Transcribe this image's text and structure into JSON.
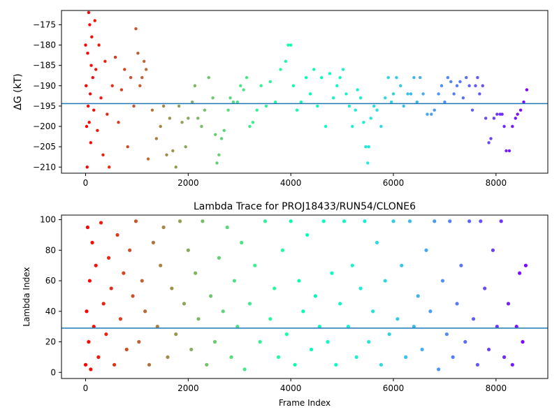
{
  "chart_data": [
    {
      "type": "scatter",
      "title": "",
      "xlabel": "",
      "ylabel": "ΔG (kT)",
      "xlim": [
        -470,
        9010
      ],
      "ylim": [
        -211.5,
        -171.5
      ],
      "xticks": [
        0,
        2000,
        4000,
        6000,
        8000
      ],
      "yticks": [
        -175,
        -180,
        -185,
        -190,
        -195,
        -200,
        -205,
        -210
      ],
      "hline": {
        "y": -194.4,
        "color": "#1f77b4"
      },
      "colormap": "rainbow, reversed along x (red at early frames, violet at late frames)",
      "series": [
        {
          "x": [
            0,
            10,
            20,
            30,
            40,
            50,
            60,
            70,
            80,
            90,
            100,
            110,
            120,
            140,
            160,
            180,
            200,
            230,
            260,
            300,
            340,
            380,
            420,
            460,
            520,
            580,
            640,
            700,
            760,
            820,
            880,
            940,
            980,
            1020,
            1060,
            1100,
            1140,
            1180,
            1220,
            1300,
            1380,
            1460,
            1520,
            1580,
            1640,
            1700,
            1760,
            1820,
            1880,
            1950,
            2000,
            2080,
            2130,
            2190,
            2260,
            2320,
            2400,
            2480,
            2530,
            2560,
            2600,
            2650,
            2700,
            2780,
            2820,
            2880,
            2960,
            3020,
            3080,
            3140,
            3200,
            3260,
            3340,
            3420,
            3520,
            3600,
            3700,
            3800,
            3900,
            3950,
            4000,
            4050,
            4120,
            4200,
            4300,
            4380,
            4450,
            4520,
            4600,
            4680,
            4760,
            4830,
            4900,
            4960,
            5020,
            5080,
            5140,
            5200,
            5260,
            5300,
            5360,
            5420,
            5460,
            5500,
            5520,
            5560,
            5620,
            5680,
            5760,
            5840,
            5900,
            5960,
            6000,
            6060,
            6140,
            6200,
            6280,
            6340,
            6400,
            6460,
            6520,
            6580,
            6660,
            6740,
            6800,
            6880,
            6940,
            7000,
            7060,
            7120,
            7180,
            7240,
            7300,
            7360,
            7420,
            7480,
            7540,
            7600,
            7640,
            7680,
            7740,
            7800,
            7860,
            7900,
            7960,
            8020,
            8080,
            8120,
            8160,
            8200,
            8260,
            8320,
            8380,
            8420,
            8480,
            8540,
            8600
          ],
          "y": [
            -180,
            -190,
            -200,
            -210,
            -182,
            -195,
            -172,
            -199,
            -175,
            -192,
            -204,
            -185,
            -178,
            -188,
            -196,
            -174,
            -186,
            -201,
            -180,
            -193,
            -207,
            -184,
            -197,
            -210,
            -190,
            -183,
            -199,
            -191,
            -186,
            -205,
            -188,
            -195,
            -176,
            -182,
            -190,
            -188,
            -184,
            -186,
            -208,
            -196,
            -203,
            -200,
            -195,
            -207,
            -198,
            -206,
            -210,
            -195,
            -199,
            -205,
            -198,
            -194,
            -190,
            -198,
            -200,
            -196,
            -188,
            -193,
            -202,
            -209,
            -207,
            -203,
            -201,
            -196,
            -193,
            -194,
            -194,
            -190,
            -191,
            -188,
            -200,
            -199,
            -196,
            -190,
            -195,
            -189,
            -194,
            -186,
            -184,
            -180,
            -180,
            -190,
            -196,
            -194,
            -188,
            -192,
            -186,
            -195,
            -188,
            -200,
            -187,
            -193,
            -190,
            -188,
            -186,
            -192,
            -195,
            -200,
            -196,
            -191,
            -193,
            -199,
            -205,
            -209,
            -205,
            -198,
            -195,
            -196,
            -200,
            -193,
            -188,
            -194,
            -192,
            -188,
            -190,
            -195,
            -192,
            -192,
            -188,
            -194,
            -188,
            -192,
            -197,
            -197,
            -196,
            -192,
            -190,
            -194,
            -188,
            -189,
            -192,
            -190,
            -189,
            -193,
            -188,
            -190,
            -196,
            -190,
            -188,
            -192,
            -190,
            -198,
            -204,
            -203,
            -198,
            -197,
            -197,
            -197,
            -200,
            -206,
            -206,
            -200,
            -198,
            -197,
            -196,
            -194,
            -191
          ]
        }
      ]
    },
    {
      "type": "scatter",
      "title": "Lambda Trace for PROJ18433/RUN54/CLONE6",
      "xlabel": "Frame Index",
      "ylabel": "Lambda Index",
      "xlim": [
        -470,
        9010
      ],
      "ylim": [
        -4,
        103
      ],
      "xticks": [
        0,
        2000,
        4000,
        6000,
        8000
      ],
      "yticks": [
        0,
        20,
        40,
        60,
        80,
        100
      ],
      "hline": {
        "y": 29,
        "color": "#1f77b4"
      },
      "colormap": "rainbow, reversed along x (red at early frames, violet at late frames)",
      "series": [
        {
          "x": [
            0,
            20,
            40,
            60,
            80,
            100,
            130,
            160,
            200,
            250,
            300,
            350,
            400,
            450,
            500,
            560,
            620,
            680,
            740,
            800,
            860,
            920,
            980,
            1040,
            1100,
            1160,
            1240,
            1320,
            1400,
            1460,
            1520,
            1600,
            1680,
            1760,
            1840,
            1920,
            2000,
            2060,
            2140,
            2200,
            2280,
            2360,
            2440,
            2520,
            2600,
            2680,
            2760,
            2840,
            2900,
            2960,
            3040,
            3100,
            3200,
            3300,
            3400,
            3500,
            3600,
            3680,
            3760,
            3840,
            3920,
            4000,
            4080,
            4160,
            4240,
            4320,
            4400,
            4480,
            4560,
            4640,
            4720,
            4800,
            4880,
            4960,
            5040,
            5120,
            5200,
            5280,
            5360,
            5440,
            5520,
            5600,
            5680,
            5760,
            5840,
            5920,
            6000,
            6080,
            6160,
            6240,
            6320,
            6400,
            6480,
            6560,
            6640,
            6720,
            6800,
            6880,
            6960,
            7040,
            7100,
            7160,
            7240,
            7320,
            7400,
            7480,
            7560,
            7640,
            7700,
            7780,
            7860,
            7940,
            8020,
            8100,
            8160,
            8240,
            8320,
            8400,
            8460,
            8520,
            8580
          ],
          "y": [
            5,
            40,
            95,
            20,
            60,
            2,
            85,
            30,
            70,
            10,
            98,
            45,
            25,
            75,
            55,
            5,
            90,
            35,
            65,
            15,
            80,
            50,
            99,
            20,
            60,
            40,
            5,
            85,
            30,
            70,
            95,
            10,
            55,
            25,
            99,
            45,
            80,
            15,
            65,
            35,
            99,
            5,
            50,
            20,
            75,
            40,
            95,
            10,
            60,
            30,
            85,
            2,
            45,
            70,
            20,
            99,
            35,
            55,
            10,
            80,
            25,
            99,
            5,
            60,
            40,
            90,
            15,
            50,
            30,
            99,
            20,
            65,
            5,
            45,
            99,
            30,
            70,
            10,
            55,
            99,
            20,
            40,
            85,
            5,
            60,
            25,
            99,
            35,
            70,
            10,
            99,
            30,
            50,
            15,
            80,
            40,
            99,
            2,
            60,
            25,
            99,
            10,
            45,
            70,
            20,
            99,
            35,
            5,
            99,
            55,
            15,
            80,
            30,
            99,
            10,
            45,
            5,
            30,
            65,
            20,
            70
          ]
        }
      ]
    }
  ]
}
